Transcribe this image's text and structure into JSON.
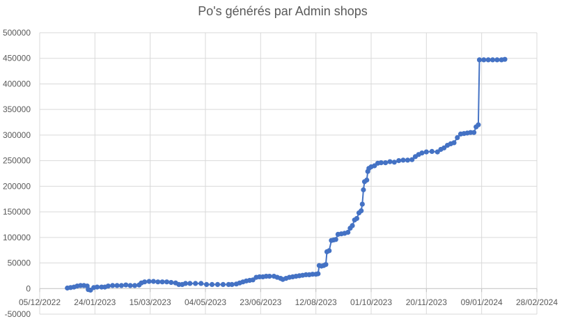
{
  "chart_data": {
    "type": "line",
    "title": "Po's générés par Admin shops",
    "xlabel": "",
    "ylabel": "",
    "x_axis": {
      "type": "date",
      "ticks": [
        "05/12/2022",
        "24/01/2023",
        "15/03/2023",
        "04/05/2023",
        "23/06/2023",
        "12/08/2023",
        "01/10/2023",
        "20/11/2023",
        "09/01/2024",
        "28/02/2024"
      ],
      "xlim": [
        "2022-12-05",
        "2024-02-28"
      ]
    },
    "y_axis": {
      "ticks": [
        -50000,
        0,
        50000,
        100000,
        150000,
        200000,
        250000,
        300000,
        350000,
        400000,
        450000,
        500000
      ],
      "ylim": [
        -50000,
        500000
      ]
    },
    "grid": true,
    "legend": "none",
    "series": [
      {
        "color": "#4472c4",
        "marker": "circle",
        "points": [
          [
            "2022-12-30",
            1000
          ],
          [
            "2023-01-02",
            2000
          ],
          [
            "2023-01-05",
            3000
          ],
          [
            "2023-01-08",
            5000
          ],
          [
            "2023-01-11",
            6000
          ],
          [
            "2023-01-14",
            6000
          ],
          [
            "2023-01-17",
            5000
          ],
          [
            "2023-01-18",
            -2000
          ],
          [
            "2023-01-20",
            -3000
          ],
          [
            "2023-01-23",
            2000
          ],
          [
            "2023-01-26",
            3000
          ],
          [
            "2023-01-30",
            3000
          ],
          [
            "2023-02-02",
            3000
          ],
          [
            "2023-02-05",
            5000
          ],
          [
            "2023-02-09",
            6000
          ],
          [
            "2023-02-13",
            6000
          ],
          [
            "2023-02-17",
            6000
          ],
          [
            "2023-02-21",
            7000
          ],
          [
            "2023-02-25",
            6000
          ],
          [
            "2023-03-01",
            6000
          ],
          [
            "2023-03-05",
            7000
          ],
          [
            "2023-03-07",
            11000
          ],
          [
            "2023-03-10",
            13000
          ],
          [
            "2023-03-14",
            14000
          ],
          [
            "2023-03-18",
            14000
          ],
          [
            "2023-03-22",
            13000
          ],
          [
            "2023-03-26",
            13000
          ],
          [
            "2023-03-30",
            13000
          ],
          [
            "2023-04-03",
            12000
          ],
          [
            "2023-04-07",
            11000
          ],
          [
            "2023-04-10",
            8000
          ],
          [
            "2023-04-13",
            8000
          ],
          [
            "2023-04-16",
            10000
          ],
          [
            "2023-04-20",
            10000
          ],
          [
            "2023-04-25",
            10000
          ],
          [
            "2023-04-30",
            10000
          ],
          [
            "2023-05-05",
            8000
          ],
          [
            "2023-05-10",
            8000
          ],
          [
            "2023-05-15",
            8000
          ],
          [
            "2023-05-20",
            8000
          ],
          [
            "2023-05-25",
            8000
          ],
          [
            "2023-05-28",
            8000
          ],
          [
            "2023-06-01",
            9000
          ],
          [
            "2023-06-04",
            11000
          ],
          [
            "2023-06-07",
            13000
          ],
          [
            "2023-06-10",
            15000
          ],
          [
            "2023-06-13",
            16000
          ],
          [
            "2023-06-16",
            17000
          ],
          [
            "2023-06-19",
            22000
          ],
          [
            "2023-06-22",
            23000
          ],
          [
            "2023-06-25",
            23000
          ],
          [
            "2023-06-28",
            24000
          ],
          [
            "2023-07-01",
            24000
          ],
          [
            "2023-07-05",
            24000
          ],
          [
            "2023-07-08",
            22000
          ],
          [
            "2023-07-11",
            20000
          ],
          [
            "2023-07-13",
            18000
          ],
          [
            "2023-07-16",
            20000
          ],
          [
            "2023-07-19",
            22000
          ],
          [
            "2023-07-22",
            23000
          ],
          [
            "2023-07-25",
            24000
          ],
          [
            "2023-07-28",
            25000
          ],
          [
            "2023-07-31",
            26000
          ],
          [
            "2023-08-03",
            27000
          ],
          [
            "2023-08-06",
            27000
          ],
          [
            "2023-08-09",
            28000
          ],
          [
            "2023-08-12",
            28000
          ],
          [
            "2023-08-14",
            29000
          ],
          [
            "2023-08-15",
            45000
          ],
          [
            "2023-08-17",
            44000
          ],
          [
            "2023-08-19",
            45000
          ],
          [
            "2023-08-21",
            47000
          ],
          [
            "2023-08-22",
            72000
          ],
          [
            "2023-08-24",
            74000
          ],
          [
            "2023-08-26",
            94000
          ],
          [
            "2023-08-28",
            95000
          ],
          [
            "2023-08-30",
            96000
          ],
          [
            "2023-09-01",
            106000
          ],
          [
            "2023-09-04",
            107000
          ],
          [
            "2023-09-07",
            108000
          ],
          [
            "2023-09-10",
            110000
          ],
          [
            "2023-09-12",
            118000
          ],
          [
            "2023-09-14",
            123000
          ],
          [
            "2023-09-16",
            134000
          ],
          [
            "2023-09-18",
            137000
          ],
          [
            "2023-09-20",
            148000
          ],
          [
            "2023-09-22",
            152000
          ],
          [
            "2023-09-23",
            165000
          ],
          [
            "2023-09-24",
            193000
          ],
          [
            "2023-09-25",
            209000
          ],
          [
            "2023-09-27",
            212000
          ],
          [
            "2023-09-28",
            229000
          ],
          [
            "2023-09-29",
            235000
          ],
          [
            "2023-10-01",
            238000
          ],
          [
            "2023-10-04",
            240000
          ],
          [
            "2023-10-07",
            245000
          ],
          [
            "2023-10-10",
            246000
          ],
          [
            "2023-10-14",
            246000
          ],
          [
            "2023-10-18",
            248000
          ],
          [
            "2023-10-22",
            247000
          ],
          [
            "2023-10-26",
            250000
          ],
          [
            "2023-10-30",
            251000
          ],
          [
            "2023-11-03",
            251000
          ],
          [
            "2023-11-07",
            252000
          ],
          [
            "2023-11-10",
            258000
          ],
          [
            "2023-11-13",
            262000
          ],
          [
            "2023-11-16",
            265000
          ],
          [
            "2023-11-20",
            267000
          ],
          [
            "2023-11-25",
            268000
          ],
          [
            "2023-11-30",
            267000
          ],
          [
            "2023-12-03",
            272000
          ],
          [
            "2023-12-06",
            275000
          ],
          [
            "2023-12-09",
            280000
          ],
          [
            "2023-12-12",
            283000
          ],
          [
            "2023-12-15",
            285000
          ],
          [
            "2023-12-18",
            295000
          ],
          [
            "2023-12-21",
            302000
          ],
          [
            "2023-12-24",
            303000
          ],
          [
            "2023-12-27",
            304000
          ],
          [
            "2023-12-30",
            305000
          ],
          [
            "2024-01-02",
            305000
          ],
          [
            "2024-01-04",
            316000
          ],
          [
            "2024-01-06",
            320000
          ],
          [
            "2024-01-07",
            447000
          ],
          [
            "2024-01-11",
            447000
          ],
          [
            "2024-01-15",
            447000
          ],
          [
            "2024-01-19",
            447000
          ],
          [
            "2024-01-23",
            447000
          ],
          [
            "2024-01-27",
            447000
          ],
          [
            "2024-01-30",
            448000
          ]
        ]
      }
    ]
  }
}
